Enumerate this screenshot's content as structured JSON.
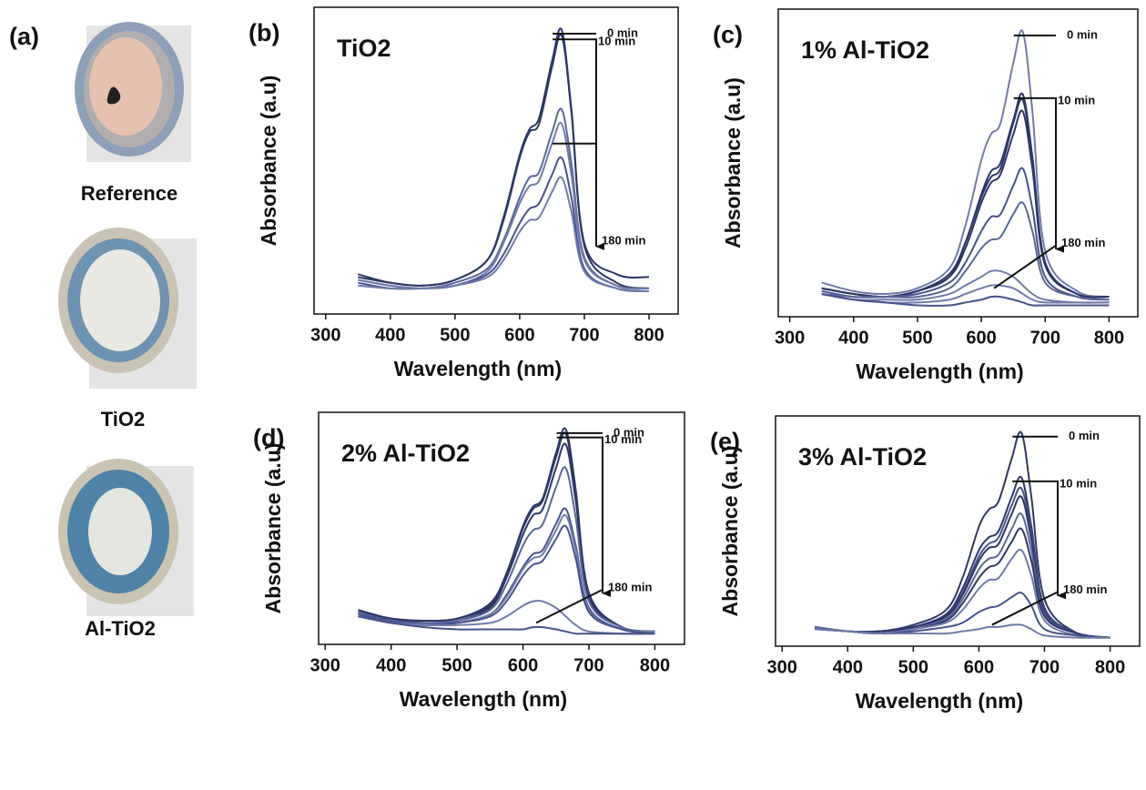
{
  "photos": {
    "label": "(a)",
    "captions": [
      "Reference",
      "TiO2",
      "Al-TiO2"
    ]
  },
  "chart_data": [
    {
      "type": "line",
      "panel": "(b)",
      "title": "TiO2",
      "xlabel": "Wavelength (nm)",
      "ylabel": "Absorbance (a.u)",
      "x": [
        350,
        400,
        450,
        500,
        550,
        575,
        600,
        615,
        630,
        650,
        665,
        680,
        700,
        750,
        800
      ],
      "xlim": [
        282,
        845
      ],
      "xticks": [
        300,
        400,
        500,
        600,
        700,
        800
      ],
      "ylim": [
        0,
        1.08
      ],
      "annotations": [
        "0 min",
        "10 min",
        "180 min"
      ],
      "series": [
        {
          "color": "#2c3766",
          "values": [
            0.14,
            0.11,
            0.1,
            0.12,
            0.19,
            0.34,
            0.56,
            0.65,
            0.69,
            0.89,
            1.0,
            0.72,
            0.25,
            0.14,
            0.13
          ]
        },
        {
          "color": "#2c3766",
          "values": [
            0.13,
            0.11,
            0.1,
            0.12,
            0.19,
            0.33,
            0.55,
            0.64,
            0.67,
            0.87,
            0.98,
            0.71,
            0.24,
            0.11,
            0.09
          ]
        },
        {
          "color": "#5a6797",
          "values": [
            0.12,
            0.1,
            0.09,
            0.11,
            0.16,
            0.26,
            0.41,
            0.48,
            0.5,
            0.64,
            0.72,
            0.53,
            0.2,
            0.1,
            0.09
          ]
        },
        {
          "color": "#6f7ba8",
          "values": [
            0.12,
            0.1,
            0.09,
            0.1,
            0.15,
            0.25,
            0.39,
            0.45,
            0.47,
            0.6,
            0.67,
            0.49,
            0.19,
            0.1,
            0.09
          ]
        },
        {
          "color": "#46528a",
          "values": [
            0.11,
            0.09,
            0.09,
            0.1,
            0.14,
            0.21,
            0.32,
            0.37,
            0.39,
            0.49,
            0.55,
            0.41,
            0.16,
            0.09,
            0.08
          ]
        },
        {
          "color": "#6f7ba8",
          "values": [
            0.1,
            0.09,
            0.09,
            0.1,
            0.13,
            0.19,
            0.29,
            0.33,
            0.34,
            0.43,
            0.48,
            0.36,
            0.15,
            0.09,
            0.08
          ]
        }
      ]
    },
    {
      "type": "line",
      "panel": "(c)",
      "title": "1% Al-TiO2",
      "xlabel": "Wavelength (nm)",
      "ylabel": "Absorbance (a.u)",
      "x": [
        350,
        400,
        450,
        500,
        550,
        575,
        600,
        615,
        630,
        650,
        665,
        680,
        700,
        750,
        800
      ],
      "xlim": [
        282,
        845
      ],
      "xticks": [
        300,
        400,
        500,
        600,
        700,
        800
      ],
      "ylim": [
        0,
        1.08
      ],
      "annotations": [
        "0 min",
        "10 min",
        "180 min"
      ],
      "series": [
        {
          "color": "#6f7ba8",
          "values": [
            0.12,
            0.09,
            0.08,
            0.1,
            0.17,
            0.32,
            0.55,
            0.64,
            0.68,
            0.89,
            1.0,
            0.72,
            0.23,
            0.09,
            0.07
          ]
        },
        {
          "color": "#2c3766",
          "values": [
            0.1,
            0.08,
            0.07,
            0.09,
            0.15,
            0.26,
            0.43,
            0.51,
            0.54,
            0.69,
            0.78,
            0.56,
            0.19,
            0.08,
            0.07
          ]
        },
        {
          "color": "#2c3766",
          "values": [
            0.1,
            0.08,
            0.07,
            0.09,
            0.14,
            0.26,
            0.42,
            0.49,
            0.52,
            0.68,
            0.76,
            0.55,
            0.19,
            0.08,
            0.07
          ]
        },
        {
          "color": "#2c3766",
          "values": [
            0.1,
            0.08,
            0.07,
            0.09,
            0.14,
            0.24,
            0.4,
            0.47,
            0.5,
            0.64,
            0.72,
            0.52,
            0.18,
            0.08,
            0.07
          ]
        },
        {
          "color": "#46528a",
          "values": [
            0.09,
            0.07,
            0.07,
            0.08,
            0.12,
            0.19,
            0.3,
            0.35,
            0.36,
            0.46,
            0.52,
            0.38,
            0.14,
            0.07,
            0.06
          ]
        },
        {
          "color": "#5a6797",
          "values": [
            0.08,
            0.07,
            0.07,
            0.07,
            0.1,
            0.16,
            0.24,
            0.27,
            0.28,
            0.36,
            0.4,
            0.3,
            0.12,
            0.07,
            0.06
          ]
        },
        {
          "color": "#6f7ba8",
          "values": [
            0.08,
            0.06,
            0.06,
            0.06,
            0.08,
            0.11,
            0.14,
            0.16,
            0.16,
            0.14,
            0.11,
            0.08,
            0.06,
            0.05,
            0.05
          ]
        },
        {
          "color": "#6f7ba8",
          "values": [
            0.08,
            0.06,
            0.05,
            0.05,
            0.06,
            0.08,
            0.1,
            0.11,
            0.11,
            0.1,
            0.08,
            0.06,
            0.05,
            0.05,
            0.05
          ]
        },
        {
          "color": "#46528a",
          "values": [
            0.08,
            0.06,
            0.05,
            0.04,
            0.04,
            0.05,
            0.06,
            0.07,
            0.07,
            0.06,
            0.05,
            0.04,
            0.04,
            0.04,
            0.04
          ]
        }
      ]
    },
    {
      "type": "line",
      "panel": "(d)",
      "title": "2% Al-TiO2",
      "xlabel": "Wavelength (nm)",
      "ylabel": "Absorbance (a.u)",
      "x": [
        350,
        400,
        450,
        500,
        550,
        575,
        600,
        615,
        630,
        650,
        665,
        680,
        700,
        750,
        800
      ],
      "xlim": [
        290,
        845
      ],
      "xticks": [
        300,
        400,
        500,
        600,
        700,
        800
      ],
      "ylim": [
        0,
        1.08
      ],
      "annotations": [
        "0 min",
        "10 min",
        "180 min"
      ],
      "series": [
        {
          "color": "#2c3766",
          "values": [
            0.16,
            0.12,
            0.11,
            0.12,
            0.19,
            0.33,
            0.55,
            0.64,
            0.68,
            0.89,
            1.0,
            0.72,
            0.24,
            0.08,
            0.06
          ]
        },
        {
          "color": "#2c3766",
          "values": [
            0.15,
            0.12,
            0.11,
            0.12,
            0.18,
            0.33,
            0.54,
            0.63,
            0.67,
            0.87,
            0.98,
            0.7,
            0.23,
            0.08,
            0.06
          ]
        },
        {
          "color": "#2c3766",
          "values": [
            0.15,
            0.12,
            0.1,
            0.11,
            0.17,
            0.31,
            0.51,
            0.6,
            0.63,
            0.82,
            0.93,
            0.67,
            0.22,
            0.08,
            0.06
          ]
        },
        {
          "color": "#5a6797",
          "values": [
            0.15,
            0.11,
            0.1,
            0.11,
            0.16,
            0.28,
            0.46,
            0.53,
            0.56,
            0.73,
            0.82,
            0.59,
            0.2,
            0.08,
            0.06
          ]
        },
        {
          "color": "#46528a",
          "values": [
            0.14,
            0.11,
            0.09,
            0.1,
            0.14,
            0.23,
            0.36,
            0.42,
            0.44,
            0.56,
            0.63,
            0.46,
            0.17,
            0.07,
            0.06
          ]
        },
        {
          "color": "#6f7ba8",
          "values": [
            0.14,
            0.1,
            0.09,
            0.1,
            0.14,
            0.22,
            0.35,
            0.4,
            0.42,
            0.53,
            0.6,
            0.44,
            0.16,
            0.07,
            0.06
          ]
        },
        {
          "color": "#46528a",
          "values": [
            0.14,
            0.1,
            0.09,
            0.1,
            0.13,
            0.2,
            0.32,
            0.37,
            0.39,
            0.49,
            0.55,
            0.4,
            0.15,
            0.07,
            0.05
          ]
        },
        {
          "color": "#6f7ba8",
          "values": [
            0.13,
            0.1,
            0.09,
            0.09,
            0.1,
            0.13,
            0.18,
            0.2,
            0.2,
            0.17,
            0.13,
            0.09,
            0.06,
            0.05,
            0.05
          ]
        },
        {
          "color": "#46528a",
          "values": [
            0.13,
            0.1,
            0.08,
            0.07,
            0.07,
            0.07,
            0.07,
            0.08,
            0.08,
            0.07,
            0.06,
            0.05,
            0.05,
            0.05,
            0.05
          ]
        }
      ]
    },
    {
      "type": "line",
      "panel": "(e)",
      "title": "3% Al-TiO2",
      "xlabel": "Wavelength (nm)",
      "ylabel": "Absorbance (a.u)",
      "x": [
        350,
        400,
        450,
        500,
        550,
        575,
        600,
        615,
        630,
        650,
        665,
        680,
        700,
        750,
        800
      ],
      "xlim": [
        290,
        845
      ],
      "xticks": [
        300,
        400,
        500,
        600,
        700,
        800
      ],
      "ylim": [
        0,
        1.08
      ],
      "annotations": [
        "0 min",
        "10 min",
        "180 min"
      ],
      "series": [
        {
          "color": "#2c3766",
          "values": [
            0.09,
            0.07,
            0.07,
            0.1,
            0.17,
            0.32,
            0.56,
            0.64,
            0.68,
            0.88,
            1.0,
            0.7,
            0.22,
            0.06,
            0.04
          ]
        },
        {
          "color": "#2c3766",
          "values": [
            0.09,
            0.07,
            0.07,
            0.09,
            0.15,
            0.27,
            0.45,
            0.51,
            0.54,
            0.7,
            0.79,
            0.56,
            0.18,
            0.06,
            0.04
          ]
        },
        {
          "color": "#46528a",
          "values": [
            0.09,
            0.07,
            0.07,
            0.09,
            0.14,
            0.25,
            0.42,
            0.48,
            0.51,
            0.66,
            0.74,
            0.53,
            0.17,
            0.06,
            0.04
          ]
        },
        {
          "color": "#2c3766",
          "values": [
            0.09,
            0.07,
            0.07,
            0.09,
            0.14,
            0.24,
            0.4,
            0.46,
            0.48,
            0.62,
            0.7,
            0.5,
            0.16,
            0.06,
            0.04
          ]
        },
        {
          "color": "#5a6797",
          "values": [
            0.09,
            0.07,
            0.06,
            0.08,
            0.13,
            0.22,
            0.36,
            0.41,
            0.43,
            0.55,
            0.62,
            0.45,
            0.15,
            0.06,
            0.04
          ]
        },
        {
          "color": "#2c3766",
          "values": [
            0.08,
            0.07,
            0.06,
            0.08,
            0.12,
            0.2,
            0.32,
            0.37,
            0.39,
            0.49,
            0.55,
            0.4,
            0.14,
            0.06,
            0.04
          ]
        },
        {
          "color": "#6f7ba8",
          "values": [
            0.08,
            0.07,
            0.06,
            0.08,
            0.11,
            0.17,
            0.27,
            0.31,
            0.32,
            0.41,
            0.45,
            0.33,
            0.12,
            0.05,
            0.04
          ]
        },
        {
          "color": "#46528a",
          "values": [
            0.08,
            0.07,
            0.06,
            0.07,
            0.09,
            0.11,
            0.16,
            0.18,
            0.19,
            0.23,
            0.25,
            0.19,
            0.08,
            0.05,
            0.04
          ]
        },
        {
          "color": "#6f7ba8",
          "values": [
            0.08,
            0.07,
            0.06,
            0.06,
            0.06,
            0.07,
            0.08,
            0.09,
            0.09,
            0.1,
            0.1,
            0.08,
            0.05,
            0.04,
            0.04
          ]
        }
      ]
    }
  ]
}
